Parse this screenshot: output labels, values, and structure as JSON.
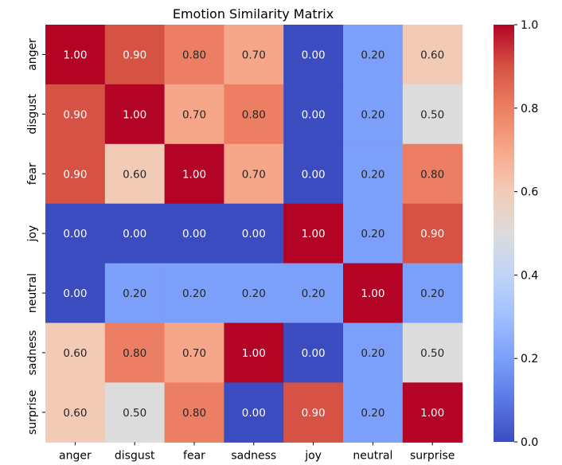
{
  "chart_data": {
    "type": "heatmap",
    "title": "Emotion Similarity Matrix",
    "xlabel": "",
    "ylabel": "",
    "x_categories": [
      "anger",
      "disgust",
      "fear",
      "sadness",
      "joy",
      "neutral",
      "surprise"
    ],
    "y_categories": [
      "anger",
      "disgust",
      "fear",
      "joy",
      "neutral",
      "sadness",
      "surprise"
    ],
    "values": [
      [
        1.0,
        0.9,
        0.8,
        0.7,
        0.0,
        0.2,
        0.6
      ],
      [
        0.9,
        1.0,
        0.7,
        0.8,
        0.0,
        0.2,
        0.5
      ],
      [
        0.9,
        0.6,
        1.0,
        0.7,
        0.0,
        0.2,
        0.8
      ],
      [
        0.0,
        0.0,
        0.0,
        0.0,
        1.0,
        0.2,
        0.9
      ],
      [
        0.0,
        0.2,
        0.2,
        0.2,
        0.2,
        1.0,
        0.2
      ],
      [
        0.6,
        0.8,
        0.7,
        1.0,
        0.0,
        0.2,
        0.5
      ],
      [
        0.6,
        0.5,
        0.8,
        0.0,
        0.9,
        0.2,
        1.0
      ]
    ],
    "colormap": "coolwarm",
    "colorbar_range": [
      0.0,
      1.0
    ],
    "colorbar_ticks": [
      "0.0",
      "0.2",
      "0.4",
      "0.6",
      "0.8",
      "1.0"
    ],
    "annotation_format": "2 decimals",
    "grid": false
  }
}
